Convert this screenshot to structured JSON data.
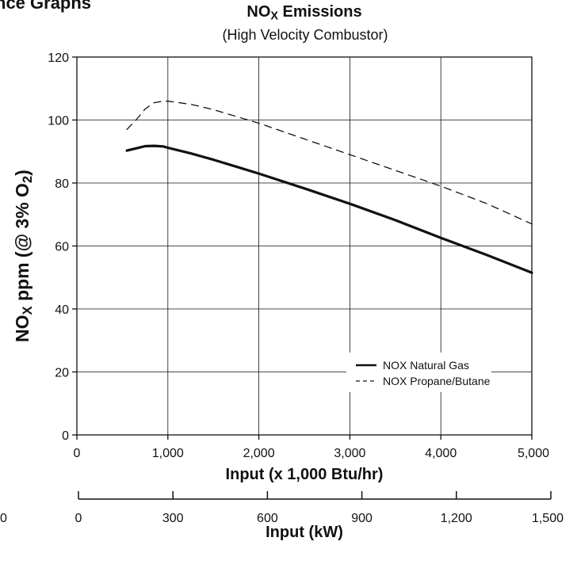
{
  "page": {
    "truncated_heading": "nce Graphs"
  },
  "chart_data": {
    "type": "line",
    "title": "NO_X Emissions",
    "title_main": "NO",
    "title_sub": "X",
    "title_rest": " Emissions",
    "subtitle": "(High Velocity Combustor)",
    "ylabel_parts": [
      "NO",
      "X",
      " ppm (@ 3% O",
      "2",
      ")"
    ],
    "xlabel": "Input (x 1,000 Btu/hr)",
    "xlim": [
      0,
      5000
    ],
    "ylim": [
      0,
      120
    ],
    "x_ticks": [
      0,
      1000,
      2000,
      3000,
      4000,
      5000
    ],
    "x_tick_labels": [
      "0",
      "1,000",
      "2,000",
      "3,000",
      "4,000",
      "5,000"
    ],
    "y_ticks": [
      0,
      20,
      40,
      60,
      80,
      100,
      120
    ],
    "y_tick_labels": [
      "0",
      "20",
      "40",
      "60",
      "80",
      "100",
      "120"
    ],
    "grid": true,
    "legend_position": "lower-right",
    "secondary_axis": {
      "label": "Input (kW)",
      "ticks": [
        0,
        300,
        600,
        900,
        1200,
        1500
      ],
      "tick_labels": [
        "0",
        "300",
        "600",
        "900",
        "1,200",
        "1,500"
      ],
      "stray_left_label": "0"
    },
    "series": [
      {
        "name": "NOX Natural Gas",
        "style": "solid",
        "color": "#111111",
        "x": [
          550,
          650,
          750,
          850,
          950,
          1000,
          1250,
          1500,
          1750,
          2000,
          2500,
          3000,
          3500,
          4000,
          4500,
          5000
        ],
        "y": [
          90.3,
          91.0,
          91.7,
          91.8,
          91.6,
          91.2,
          89.4,
          87.4,
          85.2,
          83.0,
          78.3,
          73.4,
          68.2,
          62.6,
          57.2,
          51.5
        ]
      },
      {
        "name": "NOX Propane/Butane",
        "style": "dashed",
        "color": "#111111",
        "x": [
          550,
          650,
          750,
          850,
          950,
          1000,
          1250,
          1500,
          2000,
          2500,
          3000,
          3500,
          4000,
          4500,
          5000
        ],
        "y": [
          97.0,
          100.0,
          103.5,
          105.5,
          106.0,
          106.0,
          105.0,
          103.3,
          99.0,
          94.0,
          89.0,
          84.0,
          79.0,
          73.5,
          67.0
        ]
      }
    ]
  }
}
